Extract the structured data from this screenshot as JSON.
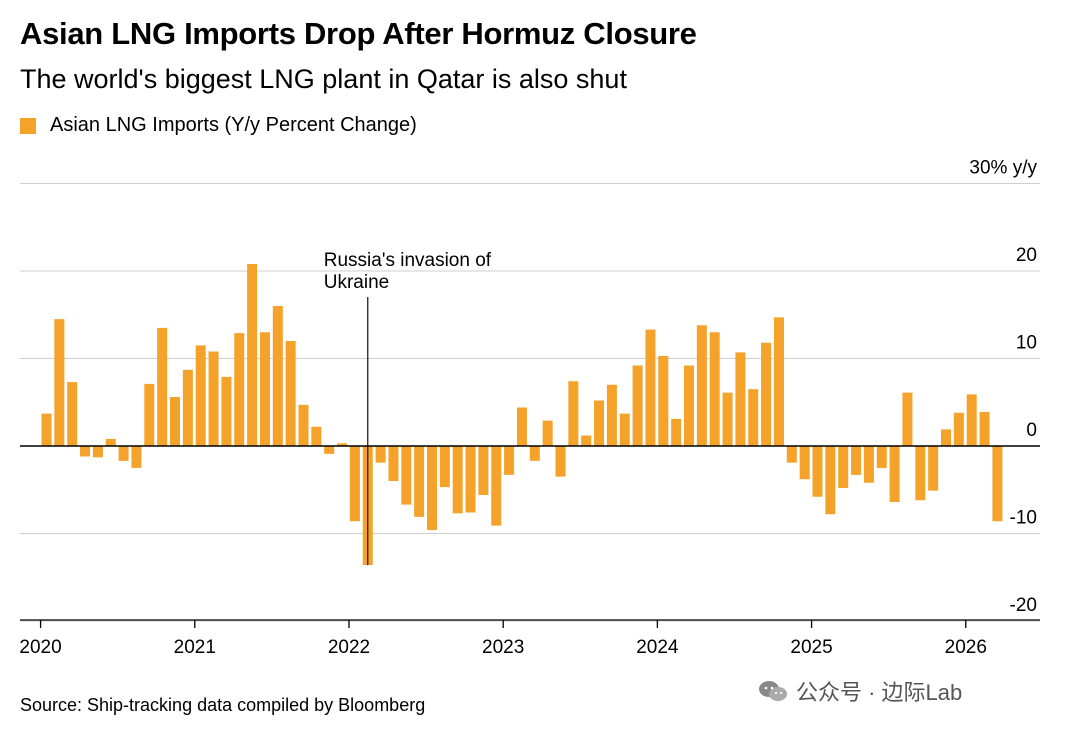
{
  "header": {
    "title": "Asian LNG Imports Drop After Hormuz Closure",
    "subtitle": "The world's biggest LNG plant in Qatar is also shut"
  },
  "legend": {
    "label": "Asian LNG Imports (Y/y Percent Change)",
    "color": "#f5a22a"
  },
  "footer": {
    "source": "Source: Ship-tracking data compiled by Bloomberg"
  },
  "watermark": {
    "text": "公众号 · 边际Lab",
    "icon": "wechat-icon"
  },
  "chart_data": {
    "type": "bar",
    "title": "Asian LNG Imports Drop After Hormuz Closure",
    "subtitle": "The world's biggest LNG plant in Qatar is also shut",
    "series": [
      {
        "name": "Asian LNG Imports (Y/y Percent Change)",
        "color": "#f5a22a",
        "values": [
          3.7,
          14.5,
          7.3,
          -1.2,
          -1.3,
          0.8,
          -1.7,
          -2.5,
          7.1,
          13.5,
          5.6,
          8.7,
          11.5,
          10.8,
          7.9,
          12.9,
          20.8,
          13.0,
          16.0,
          12.0,
          4.7,
          2.2,
          -0.9,
          0.3,
          -8.6,
          -13.6,
          -1.9,
          -4.0,
          -6.7,
          -8.1,
          -9.6,
          -4.7,
          -7.7,
          -7.6,
          -5.6,
          -9.1,
          -3.3,
          4.4,
          -1.7,
          2.9,
          -3.5,
          7.4,
          1.2,
          5.2,
          7.0,
          3.7,
          9.2,
          13.3,
          10.3,
          3.1,
          9.2,
          13.8,
          13.0,
          6.1,
          10.7,
          6.5,
          11.8,
          14.7,
          -1.9,
          -3.8,
          -5.8,
          -7.8,
          -4.8,
          -3.3,
          -4.2,
          -2.5,
          -6.4,
          6.1,
          -6.2,
          -5.1,
          1.9,
          3.8,
          5.9,
          3.9,
          -8.6
        ],
        "start": "2020-01",
        "frequency": "monthly"
      }
    ],
    "x_ticks": [
      "2020",
      "2021",
      "2022",
      "2023",
      "2024",
      "2025",
      "2026"
    ],
    "y_ticks": [
      {
        "value": 30,
        "label": "30% y/y"
      },
      {
        "value": 20,
        "label": "20"
      },
      {
        "value": 10,
        "label": "10"
      },
      {
        "value": 0,
        "label": "0"
      },
      {
        "value": -10,
        "label": "-10"
      },
      {
        "value": -20,
        "label": "-20"
      }
    ],
    "ylim": [
      -20,
      30
    ],
    "grid": true,
    "annotation": {
      "text_line1": "Russia's invasion of",
      "text_line2": "Ukraine",
      "at": "2022-02"
    },
    "xlabel": "",
    "ylabel": "",
    "legend_position": "top-left"
  }
}
